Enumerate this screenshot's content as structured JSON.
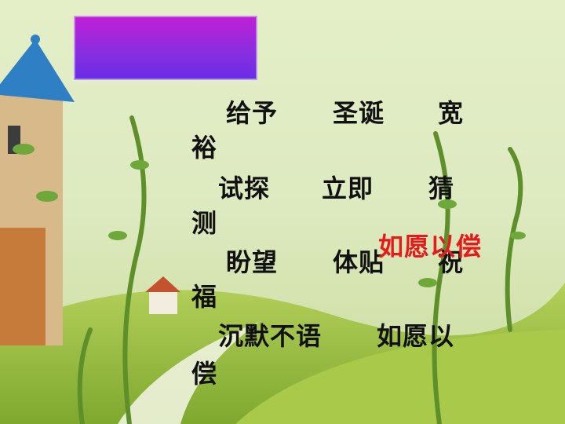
{
  "lines": [
    {
      "a": "给予",
      "b": "圣诞",
      "c": "宽",
      "wrap": "裕"
    },
    {
      "a": "试探",
      "b": "立即",
      "c": "猜",
      "wrap": "测"
    },
    {
      "a": "盼望",
      "b": "体贴",
      "c": "祝",
      "wrap": "福"
    },
    {
      "a": "沉默不语",
      "b": "如愿以",
      "wrap": "偿"
    }
  ],
  "highlight": "如愿以偿",
  "colors": {
    "title_box": "#8a2ee0",
    "highlight": "#e8191a"
  }
}
